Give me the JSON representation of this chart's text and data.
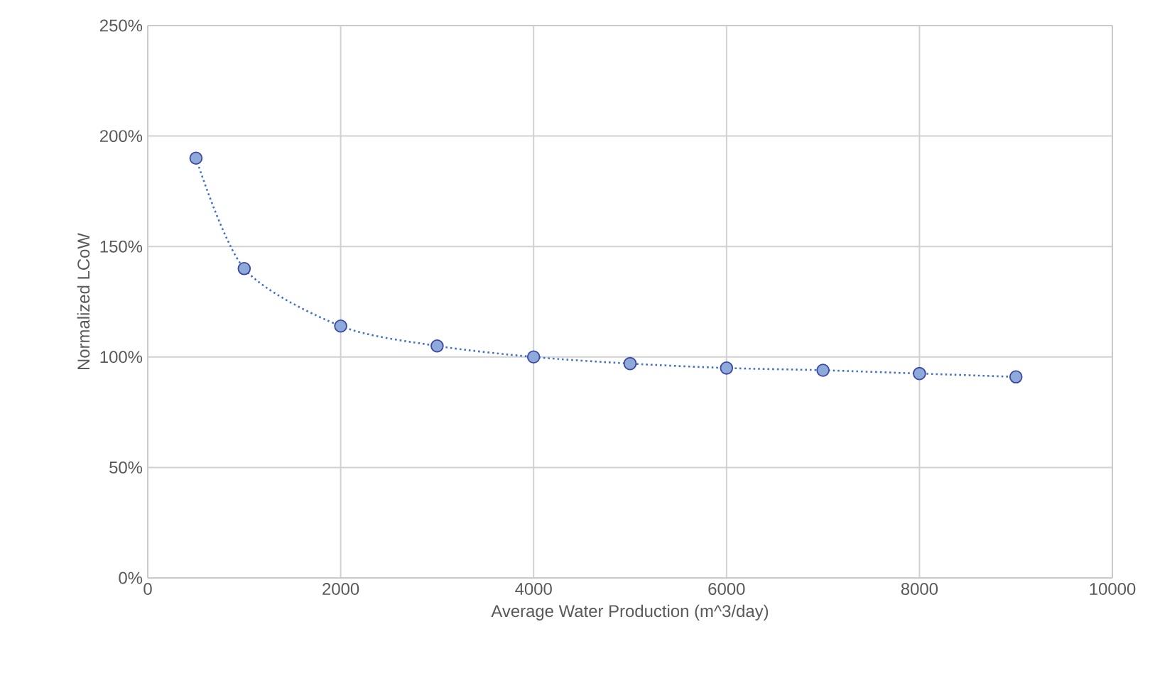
{
  "chart_data": {
    "type": "scatter",
    "xlabel": "Average Water Production (m^3/day)",
    "ylabel": "Normalized LCoW",
    "xlim": [
      0,
      10000
    ],
    "xticks": [
      0,
      2000,
      4000,
      6000,
      8000,
      10000
    ],
    "ylim": [
      0,
      250
    ],
    "yticks": [
      {
        "value": 0,
        "label": "0%"
      },
      {
        "value": 50,
        "label": "50%"
      },
      {
        "value": 100,
        "label": "100%"
      },
      {
        "value": 150,
        "label": "150%"
      },
      {
        "value": 200,
        "label": "200%"
      },
      {
        "value": 250,
        "label": "250%"
      }
    ],
    "grid": true,
    "series": [
      {
        "type": "line",
        "line_style": "dotted",
        "color": "#4472c4",
        "x": [
          500,
          1000,
          2000,
          3000,
          4000,
          5000,
          6000,
          7000,
          8000,
          9000
        ],
        "values": [
          190,
          140,
          114,
          105,
          100,
          97,
          95,
          94,
          92.5,
          91
        ]
      },
      {
        "color": "#8eaadb",
        "x": [
          500,
          1000,
          2000,
          3000,
          4000,
          5000,
          6000,
          7000,
          8000,
          9000
        ],
        "values": [
          190,
          140,
          114,
          105,
          100,
          97,
          95,
          94,
          92.5,
          91
        ]
      }
    ]
  }
}
